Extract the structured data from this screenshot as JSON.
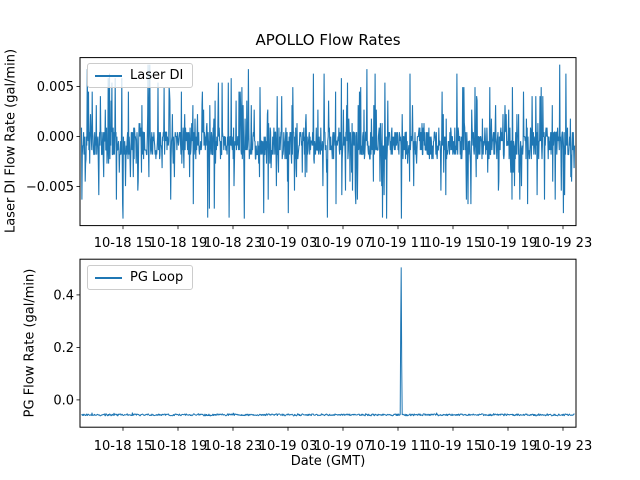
{
  "figure": {
    "title": "APOLLO Flow Rates",
    "xlabel": "Date (GMT)",
    "background": "#ffffff",
    "accent_color": "#1f77b4"
  },
  "top_plot": {
    "ylabel": "Laser DI Flow Rate (gal/min)",
    "legend_label": "Laser DI",
    "y_tick_labels": [
      "0.005",
      "0.000",
      "−0.005"
    ]
  },
  "bottom_plot": {
    "ylabel": "PG Flow Rate (gal/min)",
    "legend_label": "PG Loop",
    "y_tick_labels": [
      "0.4",
      "0.2",
      "0.0"
    ]
  },
  "chart_data": [
    {
      "type": "line",
      "title": "APOLLO Flow Rates",
      "ylabel": "Laser DI Flow Rate (gal/min)",
      "legend": [
        "Laser DI"
      ],
      "legend_position": "upper left",
      "grid": false,
      "x_tick_labels": [
        "10-18 15",
        "10-18 19",
        "10-18 23",
        "10-19 03",
        "10-19 07",
        "10-19 11",
        "10-19 15",
        "10-19 19",
        "10-19 23"
      ],
      "x_tick_interval_hours": 4,
      "y_ticks": [
        0.005,
        0.0,
        -0.005
      ],
      "ylim": [
        -0.0089,
        0.0079
      ],
      "series": [
        {
          "name": "Laser DI",
          "color": "#1f77b4",
          "summary": "dense sensor noise centered near -0.001 gal/min; solid band roughly -0.002 to +0.001 with frequent spikes up to about +0.007 and down to -0.008",
          "n_points": 1200,
          "seed": 20181018,
          "band": [
            -0.00225,
            0.0008
          ],
          "spike_prob": 0.32,
          "spike_scale": 0.0062,
          "spike_pow": 1.7,
          "quantum": 0.00045,
          "clip": [
            -0.0082,
            0.0073
          ]
        }
      ]
    },
    {
      "type": "line",
      "ylabel": "PG Flow Rate (gal/min)",
      "xlabel": "Date (GMT)",
      "legend": [
        "PG Loop"
      ],
      "legend_position": "upper left",
      "grid": false,
      "x_tick_labels": [
        "10-18 15",
        "10-18 19",
        "10-18 23",
        "10-19 03",
        "10-19 07",
        "10-19 11",
        "10-19 15",
        "10-19 19",
        "10-19 23"
      ],
      "x_tick_interval_hours": 4,
      "y_ticks": [
        0.4,
        0.2,
        0.0
      ],
      "ylim": [
        -0.104,
        0.536
      ],
      "series": [
        {
          "name": "PG Loop",
          "color": "#1f77b4",
          "summary": "flat baseline near -0.06 gal/min with small noise; one narrow spike reaching about 0.50 gal/min at approximately 10-19 11:00",
          "n_points": 988,
          "seed": 77,
          "baseline": -0.057,
          "noise_halfwidth": 0.004,
          "spike": {
            "x_fraction": 0.648,
            "peak": 0.505,
            "shoulder": 0.29,
            "time": "10-19 ~11:00"
          }
        }
      ]
    }
  ]
}
